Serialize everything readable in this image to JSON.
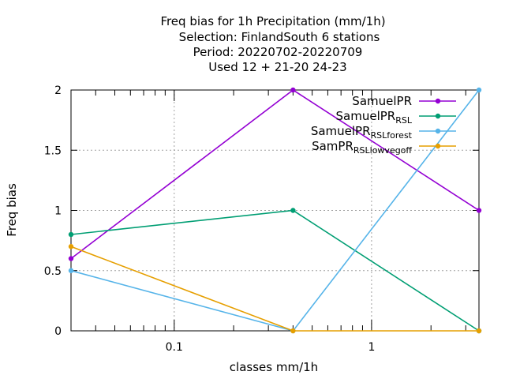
{
  "title_lines": [
    "Freq bias  for 1h Precipitation (mm/1h)",
    "Selection: FinlandSouth      6 stations",
    "Period: 20220702-20220709",
    "Used  12 + 21-20 24-23"
  ],
  "chart_data": {
    "type": "line",
    "xlabel": "classes mm/1h",
    "ylabel": "Freq bias",
    "x_scale": "log",
    "x": [
      0.03,
      0.4,
      3.5
    ],
    "xlim": [
      0.03,
      3.5
    ],
    "ylim": [
      0,
      2
    ],
    "x_ticks": [
      {
        "value": 0.1,
        "label": "0.1"
      },
      {
        "value": 1,
        "label": "1"
      }
    ],
    "y_ticks": [
      {
        "value": 0,
        "label": "0"
      },
      {
        "value": 0.5,
        "label": "0.5"
      },
      {
        "value": 1,
        "label": "1"
      },
      {
        "value": 1.5,
        "label": "1.5"
      },
      {
        "value": 2,
        "label": "2"
      }
    ],
    "grid": true,
    "legend_position": "top-right",
    "series": [
      {
        "name": "SamuelPR",
        "color": "#9400d3",
        "values": [
          0.6,
          2.0,
          1.0
        ]
      },
      {
        "name": "SamuelPR_RSL",
        "color": "#009e73",
        "values": [
          0.8,
          1.0,
          0.0
        ]
      },
      {
        "name": "SamuelPR_RSL_forest",
        "color": "#56b4e9",
        "values": [
          0.5,
          0.0,
          2.0
        ]
      },
      {
        "name": "SamPR_RSL_lowvegoff",
        "color": "#e69f00",
        "values": [
          0.7,
          0.0,
          0.0
        ]
      }
    ]
  }
}
